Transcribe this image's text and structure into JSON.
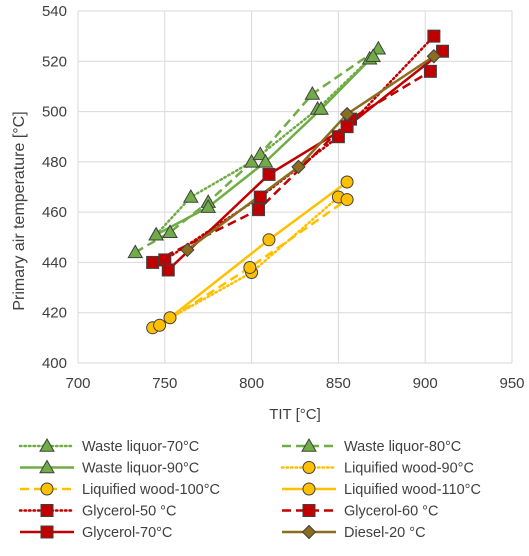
{
  "chart_data": {
    "type": "scatter",
    "xlabel": "TIT [°C]",
    "ylabel": "Primary air temperature [°C]",
    "xlim": [
      700,
      950
    ],
    "ylim": [
      400,
      540
    ],
    "xticks": [
      700,
      750,
      800,
      850,
      900,
      950
    ],
    "yticks": [
      400,
      420,
      440,
      460,
      480,
      500,
      520,
      540
    ],
    "grid": true,
    "legend_position": "bottom",
    "series": [
      {
        "name": "Waste liquor-70°C",
        "color": "#70ad47",
        "marker": "triangle",
        "line": "dotted",
        "x": [
          745,
          765,
          800,
          838,
          868
        ],
        "y": [
          451,
          466,
          480,
          501,
          521
        ]
      },
      {
        "name": "Waste liquor-80°C",
        "color": "#70ad47",
        "marker": "triangle",
        "line": "dashed",
        "x": [
          733,
          753,
          775,
          805,
          835,
          873
        ],
        "y": [
          444,
          452,
          464,
          483,
          507,
          525
        ]
      },
      {
        "name": "Waste liquor-90°C",
        "color": "#70ad47",
        "marker": "triangle",
        "line": "solid",
        "x": [
          745,
          775,
          808,
          840,
          870
        ],
        "y": [
          451,
          462,
          480,
          501,
          522
        ]
      },
      {
        "name": "Liquified wood-90°C",
        "color": "#ffc000",
        "marker": "circle",
        "line": "dotted",
        "x": [
          743,
          800,
          850
        ],
        "y": [
          414,
          436,
          466
        ]
      },
      {
        "name": "Liquified wood-100°C",
        "color": "#ffc000",
        "marker": "circle",
        "line": "dashed",
        "x": [
          747,
          799,
          855
        ],
        "y": [
          415,
          438,
          465
        ]
      },
      {
        "name": "Liquified wood-110°C",
        "color": "#ffc000",
        "marker": "circle",
        "line": "solid",
        "x": [
          753,
          810,
          855
        ],
        "y": [
          418,
          449,
          472
        ]
      },
      {
        "name": "Glycerol-50 °C",
        "color": "#c00000",
        "marker": "square",
        "line": "dotted",
        "x": [
          750,
          805,
          850,
          905
        ],
        "y": [
          441,
          466,
          490,
          530
        ]
      },
      {
        "name": "Glycerol-60 °C",
        "color": "#c00000",
        "marker": "square",
        "line": "dashed",
        "x": [
          743,
          804,
          857,
          903
        ],
        "y": [
          440,
          461,
          497,
          516
        ]
      },
      {
        "name": "Glycerol-70°C",
        "color": "#c00000",
        "marker": "square",
        "line": "solid",
        "x": [
          752,
          810,
          855,
          910
        ],
        "y": [
          437,
          475,
          494,
          524
        ]
      },
      {
        "name": "Diesel-20 °C",
        "color": "#8c6d1f",
        "marker": "diamond",
        "line": "solid",
        "x": [
          763,
          827,
          855,
          905
        ],
        "y": [
          445,
          478,
          499,
          522
        ]
      }
    ]
  }
}
